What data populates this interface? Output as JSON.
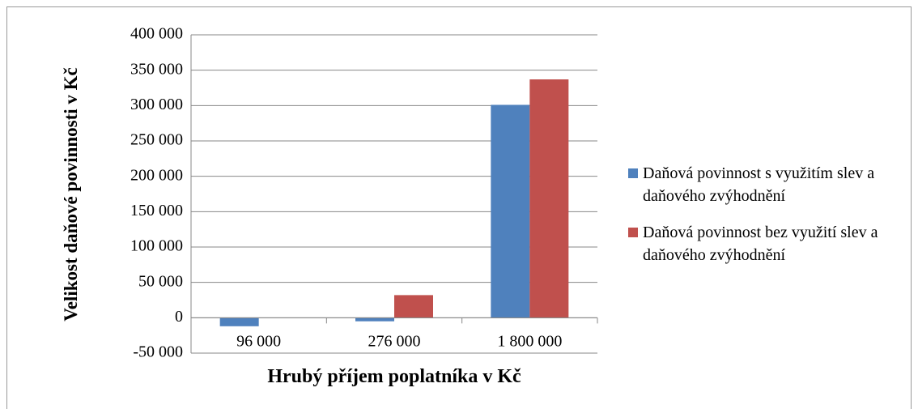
{
  "chart_data": {
    "type": "bar",
    "categories": [
      "96 000",
      "276 000",
      "1 800 000"
    ],
    "series": [
      {
        "name": "Daňová povinnost s využitím slev a daňového zvýhodnění",
        "color": "#4f81bd",
        "values": [
          -12000,
          -5000,
          301000
        ]
      },
      {
        "name": "Daňová povinnost bez využití slev a daňového zvýhodnění",
        "color": "#c0504d",
        "values": [
          0,
          32000,
          337000
        ]
      }
    ],
    "xlabel": "Hrubý příjem poplatníka v Kč",
    "ylabel": "Velikost daňové povinnosti v Kč",
    "ylim": [
      -50000,
      400000
    ],
    "yticks": [
      {
        "value": -50000,
        "label": "-50 000"
      },
      0,
      {
        "value": 50000,
        "label": "50 000"
      },
      {
        "value": 100000,
        "label": "100 000"
      },
      {
        "value": 150000,
        "label": "150 000"
      },
      {
        "value": 200000,
        "label": "200 000"
      },
      {
        "value": 250000,
        "label": "250 000"
      },
      {
        "value": 300000,
        "label": "300 000"
      },
      {
        "value": 350000,
        "label": "350 000"
      },
      {
        "value": 400000,
        "label": "400 000"
      }
    ],
    "grid": true,
    "legend": "right"
  }
}
